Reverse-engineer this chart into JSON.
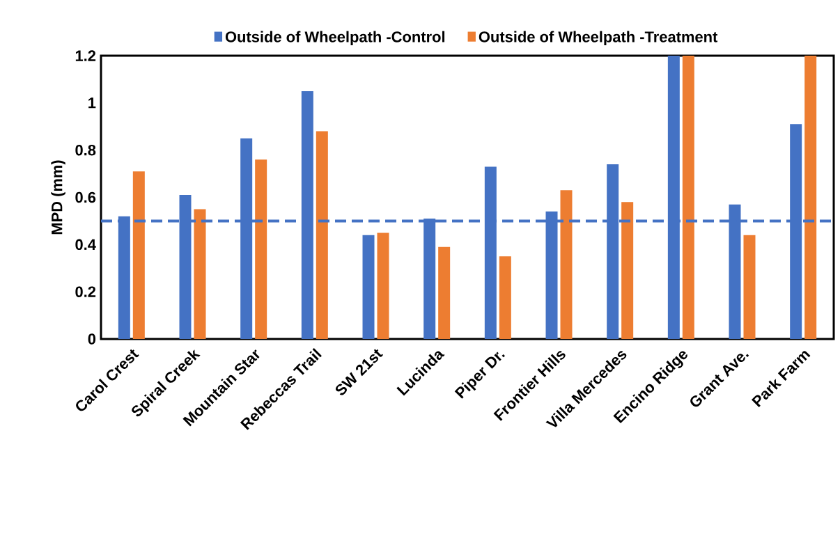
{
  "chart_data": {
    "type": "bar",
    "ylabel": "MPD (mm)",
    "categories": [
      "Carol Crest",
      "Spiral Creek",
      "Mountain Star",
      "Rebeccas Trail",
      "SW 21st",
      "Lucinda",
      "Piper Dr.",
      "Frontier Hills",
      "Villa Mercedes",
      "Encino Ridge",
      "Grant Ave.",
      "Park Farm"
    ],
    "series": [
      {
        "name": "Outside of Wheelpath -Control",
        "color": "#4472c4",
        "values": [
          0.52,
          0.61,
          0.85,
          1.05,
          0.44,
          0.51,
          0.73,
          0.54,
          0.74,
          1.2,
          0.57,
          0.91
        ]
      },
      {
        "name": "Outside of Wheelpath -Treatment",
        "color": "#ed7d31",
        "values": [
          0.71,
          0.55,
          0.76,
          0.88,
          0.45,
          0.39,
          0.35,
          0.63,
          0.58,
          1.2,
          0.44,
          1.2
        ]
      }
    ],
    "ylim": [
      0,
      1.2
    ],
    "yticks": [
      0,
      0.2,
      0.4,
      0.6,
      0.8,
      1,
      1.2
    ],
    "ref_lines": [
      {
        "axis": "y",
        "value": 0.5,
        "color": "#4472c4",
        "line_style": "dashed"
      }
    ],
    "legend": "top",
    "grid": false
  }
}
